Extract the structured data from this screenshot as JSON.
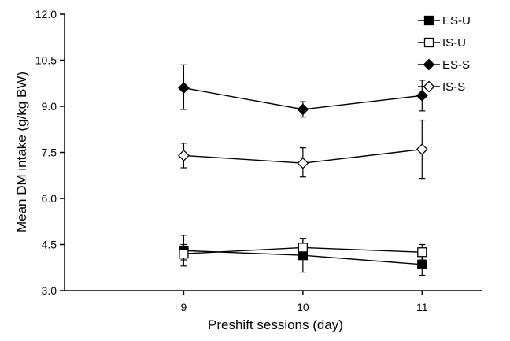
{
  "chart_data": {
    "type": "line",
    "title": "",
    "xlabel": "Preshift sessions (day)",
    "ylabel": "Mean DM intake (g/kg BW)",
    "x": [
      9,
      10,
      11
    ],
    "x_tick_labels": [
      "9",
      "10",
      "11"
    ],
    "xlim": [
      8.0,
      11.5
    ],
    "ylim": [
      3.0,
      12.0
    ],
    "y_ticks": [
      3.0,
      4.5,
      6.0,
      7.5,
      9.0,
      10.5,
      12.0
    ],
    "y_tick_labels": [
      "3.0",
      "4.5",
      "6.0",
      "7.5",
      "9.0",
      "10.5",
      "12.0"
    ],
    "grid": false,
    "legend_position": "top-right",
    "series": [
      {
        "name": "ES-U",
        "marker": "square",
        "filled": true,
        "values": [
          4.3,
          4.15,
          3.85
        ],
        "err_low": [
          0.3,
          0.55,
          0.35
        ],
        "err_high": [
          0.5,
          0.55,
          0.35
        ]
      },
      {
        "name": "IS-U",
        "marker": "square",
        "filled": false,
        "values": [
          4.2,
          4.4,
          4.25
        ],
        "err_low": [
          0.4,
          0.3,
          0.25
        ],
        "err_high": [
          0.3,
          0.3,
          0.25
        ]
      },
      {
        "name": "ES-S",
        "marker": "diamond",
        "filled": true,
        "values": [
          9.6,
          8.9,
          9.35
        ],
        "err_low": [
          0.7,
          0.25,
          0.5
        ],
        "err_high": [
          0.75,
          0.25,
          0.5
        ]
      },
      {
        "name": "IS-S",
        "marker": "diamond",
        "filled": false,
        "values": [
          7.4,
          7.15,
          7.6
        ],
        "err_low": [
          0.4,
          0.45,
          0.95
        ],
        "err_high": [
          0.4,
          0.5,
          0.95
        ]
      }
    ],
    "colors": {
      "line": "#000000",
      "background": "#ffffff"
    }
  }
}
